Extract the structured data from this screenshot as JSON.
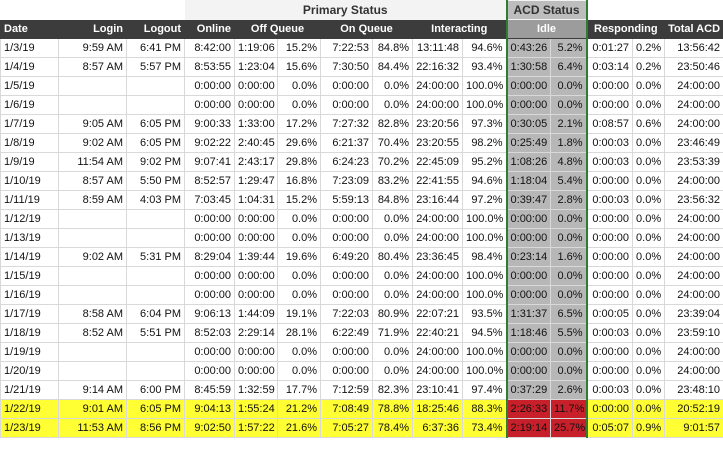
{
  "header": {
    "groups": [
      "Primary Status",
      "ACD Status"
    ]
  },
  "table": {
    "columns": [
      "Date",
      "Login",
      "Logout",
      "Online",
      "Off Queue",
      "On Queue",
      "Interacting",
      "Idle",
      "Responding",
      "Total ACD"
    ],
    "rows": [
      [
        "1/3/19",
        "9:59 AM",
        "6:41 PM",
        "8:42:00",
        "1:19:06",
        "15.2%",
        "7:22:53",
        "84.8%",
        "13:11:48",
        "94.6%",
        "0:43:26",
        "5.2%",
        "0:01:27",
        "0.2%",
        "13:56:42"
      ],
      [
        "1/4/19",
        "8:57 AM",
        "5:57 PM",
        "8:53:55",
        "1:23:04",
        "15.6%",
        "7:30:50",
        "84.4%",
        "22:16:32",
        "93.4%",
        "1:30:58",
        "6.4%",
        "0:03:14",
        "0.2%",
        "23:50:46"
      ],
      [
        "1/5/19",
        null,
        null,
        "0:00:00",
        "0:00:00",
        "0.0%",
        "0:00:00",
        "0.0%",
        "24:00:00",
        "100.0%",
        "0:00:00",
        "0.0%",
        "0:00:00",
        "0.0%",
        "24:00:00"
      ],
      [
        "1/6/19",
        null,
        null,
        "0:00:00",
        "0:00:00",
        "0.0%",
        "0:00:00",
        "0.0%",
        "24:00:00",
        "100.0%",
        "0:00:00",
        "0.0%",
        "0:00:00",
        "0.0%",
        "24:00:00"
      ],
      [
        "1/7/19",
        "9:05 AM",
        "6:05 PM",
        "9:00:33",
        "1:33:00",
        "17.2%",
        "7:27:32",
        "82.8%",
        "23:20:56",
        "97.3%",
        "0:30:05",
        "2.1%",
        "0:08:57",
        "0.6%",
        "24:00:00"
      ],
      [
        "1/8/19",
        "9:02 AM",
        "6:05 PM",
        "9:02:22",
        "2:40:45",
        "29.6%",
        "6:21:37",
        "70.4%",
        "23:20:55",
        "98.2%",
        "0:25:49",
        "1.8%",
        "0:00:03",
        "0.0%",
        "23:46:49"
      ],
      [
        "1/9/19",
        "11:54 AM",
        "9:02 PM",
        "9:07:41",
        "2:43:17",
        "29.8%",
        "6:24:23",
        "70.2%",
        "22:45:09",
        "95.2%",
        "1:08:26",
        "4.8%",
        "0:00:03",
        "0.0%",
        "23:53:39"
      ],
      [
        "1/10/19",
        "8:57 AM",
        "5:50 PM",
        "8:52:57",
        "1:29:47",
        "16.8%",
        "7:23:09",
        "83.2%",
        "22:41:55",
        "94.6%",
        "1:18:04",
        "5.4%",
        "0:00:00",
        "0.0%",
        "24:00:00"
      ],
      [
        "1/11/19",
        "8:59 AM",
        "4:03 PM",
        "7:03:45",
        "1:04:31",
        "15.2%",
        "5:59:13",
        "84.8%",
        "23:16:44",
        "97.2%",
        "0:39:47",
        "2.8%",
        "0:00:03",
        "0.0%",
        "23:56:32"
      ],
      [
        "1/12/19",
        null,
        null,
        "0:00:00",
        "0:00:00",
        "0.0%",
        "0:00:00",
        "0.0%",
        "24:00:00",
        "100.0%",
        "0:00:00",
        "0.0%",
        "0:00:00",
        "0.0%",
        "24:00:00"
      ],
      [
        "1/13/19",
        null,
        null,
        "0:00:00",
        "0:00:00",
        "0.0%",
        "0:00:00",
        "0.0%",
        "24:00:00",
        "100.0%",
        "0:00:00",
        "0.0%",
        "0:00:00",
        "0.0%",
        "24:00:00"
      ],
      [
        "1/14/19",
        "9:02 AM",
        "5:31 PM",
        "8:29:04",
        "1:39:44",
        "19.6%",
        "6:49:20",
        "80.4%",
        "23:36:45",
        "98.4%",
        "0:23:14",
        "1.6%",
        "0:00:00",
        "0.0%",
        "24:00:00"
      ],
      [
        "1/15/19",
        null,
        null,
        "0:00:00",
        "0:00:00",
        "0.0%",
        "0:00:00",
        "0.0%",
        "24:00:00",
        "100.0%",
        "0:00:00",
        "0.0%",
        "0:00:00",
        "0.0%",
        "24:00:00"
      ],
      [
        "1/16/19",
        null,
        null,
        "0:00:00",
        "0:00:00",
        "0.0%",
        "0:00:00",
        "0.0%",
        "24:00:00",
        "100.0%",
        "0:00:00",
        "0.0%",
        "0:00:00",
        "0.0%",
        "24:00:00"
      ],
      [
        "1/17/19",
        "8:58 AM",
        "6:04 PM",
        "9:06:13",
        "1:44:09",
        "19.1%",
        "7:22:03",
        "80.9%",
        "22:07:21",
        "93.5%",
        "1:31:37",
        "6.5%",
        "0:00:05",
        "0.0%",
        "23:39:04"
      ],
      [
        "1/18/19",
        "8:52 AM",
        "5:51 PM",
        "8:52:03",
        "2:29:14",
        "28.1%",
        "6:22:49",
        "71.9%",
        "22:40:21",
        "94.5%",
        "1:18:46",
        "5.5%",
        "0:00:03",
        "0.0%",
        "23:59:10"
      ],
      [
        "1/19/19",
        null,
        null,
        "0:00:00",
        "0:00:00",
        "0.0%",
        "0:00:00",
        "0.0%",
        "24:00:00",
        "100.0%",
        "0:00:00",
        "0.0%",
        "0:00:00",
        "0.0%",
        "24:00:00"
      ],
      [
        "1/20/19",
        null,
        null,
        "0:00:00",
        "0:00:00",
        "0.0%",
        "0:00:00",
        "0.0%",
        "24:00:00",
        "100.0%",
        "0:00:00",
        "0.0%",
        "0:00:00",
        "0.0%",
        "24:00:00"
      ],
      [
        "1/21/19",
        "9:14 AM",
        "6:00 PM",
        "8:45:59",
        "1:32:59",
        "17.7%",
        "7:12:59",
        "82.3%",
        "23:10:41",
        "97.4%",
        "0:37:29",
        "2.6%",
        "0:00:03",
        "0.0%",
        "23:48:10"
      ],
      [
        "1/22/19",
        "9:01 AM",
        "6:05 PM",
        "9:04:13",
        "1:55:24",
        "21.2%",
        "7:08:49",
        "78.8%",
        "18:25:46",
        "88.3%",
        "2:26:33",
        "11.7%",
        "0:00:00",
        "0.0%",
        "20:52:19"
      ],
      [
        "1/23/19",
        "11:53 AM",
        "8:56 PM",
        "9:02:50",
        "1:57:22",
        "21.6%",
        "7:05:27",
        "78.4%",
        "6:37:36",
        "73.4%",
        "2:19:14",
        "25.7%",
        "0:05:07",
        "0.9%",
        "9:01:57"
      ]
    ],
    "highlighted_rows": [
      19,
      20
    ]
  }
}
